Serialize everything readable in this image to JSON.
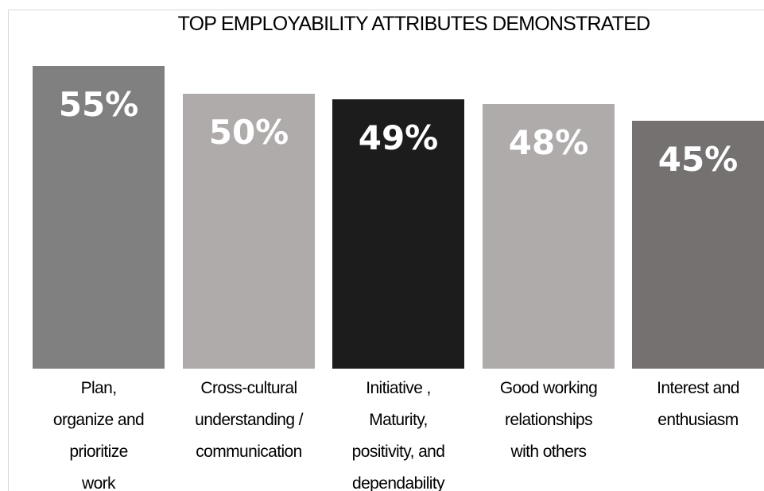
{
  "chart_data": {
    "type": "bar",
    "title": "TOP EMPLOYABILITY ATTRIBUTES DEMONSTRATED",
    "categories": [
      "Plan,\norganize and\nprioritize\nwork",
      "Cross-cultural\nunderstanding /\ncommunication",
      "Initiative ,\nMaturity,\npositivity, and\ndependability",
      "Good working\nrelationships\nwith others",
      "Interest and\nenthusiasm"
    ],
    "values": [
      55,
      50,
      49,
      48,
      45
    ],
    "value_labels": [
      "55%",
      "50%",
      "49%",
      "48%",
      "45%"
    ],
    "colors": [
      "#808080",
      "#afabab",
      "#1c1c1c",
      "#afabab",
      "#767171"
    ],
    "xlabel": "",
    "ylabel": "",
    "ylim": [
      0,
      55
    ],
    "grid": false,
    "legend": "none"
  }
}
